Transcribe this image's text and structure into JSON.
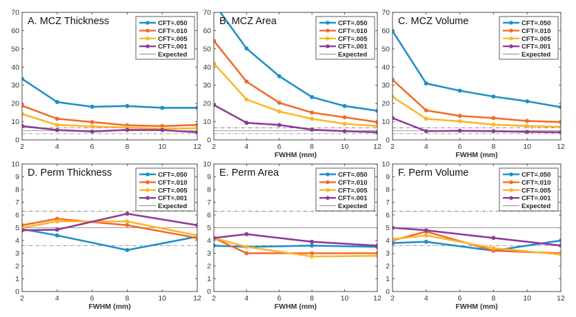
{
  "series_meta": [
    {
      "name": "CFT=.050",
      "color": "#1f8fc8"
    },
    {
      "name": "CFT=.010",
      "color": "#f26b2a"
    },
    {
      "name": "CFT=.005",
      "color": "#fbb62b"
    },
    {
      "name": "CFT=.001",
      "color": "#8e3b97"
    }
  ],
  "expected_label": "Expected",
  "chart_data": [
    {
      "type": "line",
      "title": "A. MCZ Thickness",
      "xlabel": "",
      "ylim": [
        0,
        70
      ],
      "xlim": [
        2,
        12
      ],
      "x": [
        2,
        4,
        6,
        8,
        10,
        12
      ],
      "xticks": [
        "2",
        "4",
        "6",
        "8",
        "10",
        "12"
      ],
      "yticks": [
        "0",
        "10",
        "20",
        "30",
        "40",
        "50",
        "60",
        "70"
      ],
      "series": [
        {
          "name": "CFT=.050",
          "values": [
            33.5,
            20.8,
            18.2,
            18.6,
            17.6,
            17.6
          ]
        },
        {
          "name": "CFT=.010",
          "values": [
            18.8,
            11.6,
            9.8,
            8.0,
            7.6,
            8.2
          ]
        },
        {
          "name": "CFT=.005",
          "values": [
            14.2,
            8.2,
            7.4,
            6.8,
            6.2,
            6.4
          ]
        },
        {
          "name": "CFT=.001",
          "values": [
            7.6,
            5.4,
            4.6,
            5.5,
            5.4,
            4.2
          ]
        }
      ],
      "expected": {
        "solid": 5.0,
        "dashed": [
          3.4,
          6.6
        ]
      }
    },
    {
      "type": "line",
      "title": "B. MCZ Area",
      "xlabel": "FWHM (mm)",
      "ylim": [
        0,
        70
      ],
      "xlim": [
        2,
        12
      ],
      "x": [
        2,
        4,
        6,
        8,
        10,
        12
      ],
      "xticks": [
        "2",
        "4",
        "6",
        "8",
        "10",
        "12"
      ],
      "yticks": [
        "0",
        "10",
        "20",
        "30",
        "40",
        "50",
        "60",
        "70"
      ],
      "series": [
        {
          "name": "CFT=.050",
          "values": [
            75,
            50.2,
            35.0,
            23.5,
            18.6,
            16.0
          ]
        },
        {
          "name": "CFT=.010",
          "values": [
            54.4,
            32.0,
            20.4,
            15.0,
            12.4,
            9.8
          ]
        },
        {
          "name": "CFT=.005",
          "values": [
            42.0,
            22.2,
            15.6,
            11.6,
            8.8,
            7.6
          ]
        },
        {
          "name": "CFT=.001",
          "values": [
            19.2,
            9.4,
            8.2,
            5.6,
            4.8,
            4.2
          ]
        }
      ],
      "expected": {
        "solid": 5.0,
        "dashed": [
          3.4,
          6.6
        ]
      }
    },
    {
      "type": "line",
      "title": "C. MCZ Volume",
      "xlabel": "FWHM (mm)",
      "ylim": [
        0,
        70
      ],
      "xlim": [
        2,
        12
      ],
      "x": [
        2,
        4,
        6,
        8,
        10,
        12
      ],
      "xticks": [
        "2",
        "4",
        "6",
        "8",
        "10",
        "12"
      ],
      "yticks": [
        "0",
        "10",
        "20",
        "30",
        "40",
        "50",
        "60",
        "70"
      ],
      "series": [
        {
          "name": "CFT=.050",
          "values": [
            59.8,
            31.0,
            27.0,
            23.8,
            21.2,
            18.0
          ]
        },
        {
          "name": "CFT=.010",
          "values": [
            33.0,
            16.2,
            13.2,
            12.0,
            10.4,
            9.8
          ]
        },
        {
          "name": "CFT=.005",
          "values": [
            23.6,
            11.6,
            10.2,
            8.4,
            7.6,
            7.2
          ]
        },
        {
          "name": "CFT=.001",
          "values": [
            12.0,
            4.8,
            5.0,
            4.8,
            4.4,
            4.2
          ]
        }
      ],
      "expected": {
        "solid": 5.0,
        "dashed": [
          3.4,
          6.6
        ]
      }
    },
    {
      "type": "line",
      "title": "D. Perm Thickness",
      "xlabel": "FWHM (mm)",
      "ylim": [
        0,
        10
      ],
      "xlim": [
        2,
        12
      ],
      "x": [
        2,
        4,
        8,
        12
      ],
      "xticks": [
        "2",
        "4",
        "6",
        "8",
        "10",
        "12"
      ],
      "yticks": [
        "0",
        "1",
        "2",
        "3",
        "4",
        "5",
        "6",
        "7",
        "8",
        "9",
        "10"
      ],
      "series": [
        {
          "name": "CFT=.050",
          "values": [
            4.9,
            4.4,
            3.25,
            4.3
          ]
        },
        {
          "name": "CFT=.010",
          "values": [
            5.2,
            5.7,
            5.2,
            4.2
          ]
        },
        {
          "name": "CFT=.005",
          "values": [
            5.0,
            5.5,
            5.5,
            4.4
          ]
        },
        {
          "name": "CFT=.001",
          "values": [
            4.8,
            4.85,
            6.1,
            5.2
          ]
        }
      ],
      "expected": {
        "solid": 5.0,
        "dashed": [
          3.6,
          6.3
        ]
      }
    },
    {
      "type": "line",
      "title": "E. Perm Area",
      "xlabel": "FWHM (mm)",
      "ylim": [
        0,
        10
      ],
      "xlim": [
        2,
        12
      ],
      "x": [
        2,
        4,
        8,
        12
      ],
      "xticks": [
        "2",
        "4",
        "6",
        "8",
        "10",
        "12"
      ],
      "yticks": [
        "0",
        "1",
        "2",
        "3",
        "4",
        "5",
        "6",
        "7",
        "8",
        "9",
        "10"
      ],
      "series": [
        {
          "name": "CFT=.050",
          "values": [
            3.6,
            3.5,
            3.6,
            3.5
          ]
        },
        {
          "name": "CFT=.010",
          "values": [
            4.2,
            3.0,
            3.0,
            3.0
          ]
        },
        {
          "name": "CFT=.005",
          "values": [
            4.2,
            3.5,
            2.75,
            2.8
          ]
        },
        {
          "name": "CFT=.001",
          "values": [
            4.2,
            4.5,
            3.9,
            3.6
          ]
        }
      ],
      "expected": {
        "solid": 5.0,
        "dashed": [
          3.6,
          6.3
        ]
      }
    },
    {
      "type": "line",
      "title": "F. Perm Volume",
      "xlabel": "FWHM (mm)",
      "ylim": [
        0,
        10
      ],
      "xlim": [
        2,
        12
      ],
      "x": [
        2,
        4,
        8,
        12
      ],
      "xticks": [
        "2",
        "4",
        "6",
        "8",
        "10",
        "12"
      ],
      "yticks": [
        "0",
        "1",
        "2",
        "3",
        "4",
        "5",
        "6",
        "7",
        "8",
        "9",
        "10"
      ],
      "series": [
        {
          "name": "CFT=.050",
          "values": [
            3.8,
            3.9,
            3.2,
            4.0
          ]
        },
        {
          "name": "CFT=.010",
          "values": [
            4.0,
            4.7,
            3.2,
            3.0
          ]
        },
        {
          "name": "CFT=.005",
          "values": [
            4.1,
            4.4,
            3.4,
            2.9
          ]
        },
        {
          "name": "CFT=.001",
          "values": [
            5.0,
            4.8,
            4.2,
            3.6
          ]
        }
      ],
      "expected": {
        "solid": 5.0,
        "dashed": [
          3.6,
          6.3
        ]
      }
    }
  ]
}
